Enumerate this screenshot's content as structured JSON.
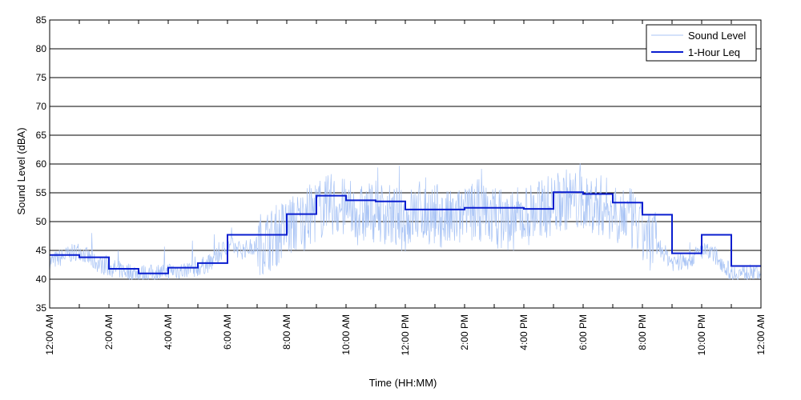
{
  "chart_data": {
    "type": "line",
    "xlabel": "Time (HH:MM)",
    "ylabel": "Sound Level (dBA)",
    "ylim": [
      35,
      85
    ],
    "xlim": [
      0,
      24
    ],
    "y_ticks": [
      35,
      40,
      45,
      50,
      55,
      60,
      65,
      70,
      75,
      80,
      85
    ],
    "x_tick_labels": [
      "12:00 AM",
      "2:00 AM",
      "4:00 AM",
      "6:00 AM",
      "8:00 AM",
      "10:00 AM",
      "12:00 PM",
      "2:00 PM",
      "4:00 PM",
      "6:00 PM",
      "8:00 PM",
      "10:00 PM",
      "12:00 AM"
    ],
    "grid": "horizontal",
    "legend_position": "top-right",
    "series": [
      {
        "name": "Sound Level",
        "color": "#a9c4f5",
        "style": "thin noisy line",
        "x": [
          0,
          0.5,
          1,
          1.5,
          2,
          2.5,
          3,
          3.5,
          4,
          4.5,
          5,
          5.5,
          6,
          6.5,
          7,
          7.5,
          8,
          8.5,
          9,
          9.5,
          10,
          10.5,
          11,
          11.5,
          12,
          12.5,
          13,
          13.5,
          14,
          14.5,
          15,
          15.5,
          16,
          16.5,
          17,
          17.5,
          18,
          18.5,
          19,
          19.5,
          20,
          20.5,
          21,
          21.5,
          22,
          22.5,
          23,
          23.5,
          24
        ],
        "y": [
          43,
          44,
          45,
          43,
          42,
          41.5,
          41,
          41,
          41.5,
          41.5,
          42,
          43,
          46,
          45,
          46,
          47,
          49,
          50,
          52,
          53,
          52,
          51,
          52,
          51,
          50,
          52,
          51,
          50,
          51,
          52,
          51,
          50,
          51,
          52,
          53,
          54,
          53,
          53,
          52,
          51,
          48,
          46,
          43,
          43,
          45,
          44,
          41,
          41,
          41
        ]
      },
      {
        "name": "1-Hour Leq",
        "color": "#0a1ecf",
        "style": "step",
        "hours": [
          0,
          1,
          2,
          3,
          4,
          5,
          6,
          7,
          8,
          9,
          10,
          11,
          12,
          13,
          14,
          15,
          16,
          17,
          18,
          19,
          20,
          21,
          22,
          23
        ],
        "values": [
          44.2,
          43.8,
          41.8,
          41.0,
          42.0,
          42.8,
          47.7,
          47.7,
          51.3,
          54.5,
          53.7,
          53.5,
          52.1,
          52.1,
          52.4,
          52.4,
          52.2,
          55.1,
          54.8,
          53.3,
          51.2,
          44.5,
          47.7,
          42.3
        ]
      }
    ]
  }
}
